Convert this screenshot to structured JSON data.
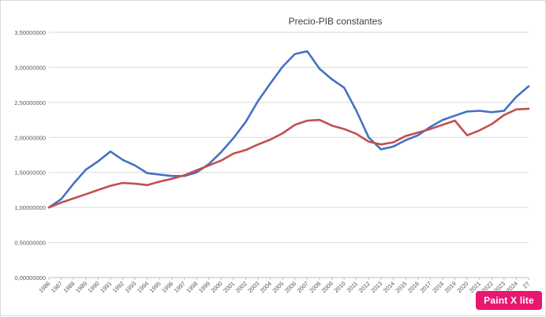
{
  "chart_data": {
    "type": "line",
    "title": "Precio-PIB constantes",
    "xlabel": "",
    "ylabel": "",
    "ylim": [
      0,
      3.5
    ],
    "y_ticks": [
      "0,00000000",
      "0,50000000",
      "1,00000000",
      "1,50000000",
      "2,00000000",
      "2,50000000",
      "3,00000000",
      "3,50000000"
    ],
    "categories": [
      "1986",
      "1987",
      "1988",
      "1989",
      "1990",
      "1991",
      "1992",
      "1993",
      "1994",
      "1995",
      "1996",
      "1997",
      "1998",
      "1999",
      "2000",
      "2001",
      "2002",
      "2003",
      "2004",
      "2005",
      "2006",
      "2007",
      "2008",
      "2009",
      "2010",
      "2011",
      "2012",
      "2013",
      "2014",
      "2015",
      "2016",
      "2017",
      "2018",
      "2019",
      "2020",
      "2021",
      "2022",
      "2023",
      "2024",
      "2T"
    ],
    "grid": true,
    "series": [
      {
        "color": "#4472c4",
        "values": [
          1.0,
          1.12,
          1.34,
          1.54,
          1.66,
          1.8,
          1.68,
          1.6,
          1.49,
          1.47,
          1.45,
          1.45,
          1.5,
          1.62,
          1.79,
          1.99,
          2.22,
          2.52,
          2.77,
          3.01,
          3.19,
          3.23,
          2.98,
          2.83,
          2.71,
          2.38,
          2.0,
          1.83,
          1.87,
          1.96,
          2.03,
          2.15,
          2.25,
          2.31,
          2.37,
          2.38,
          2.36,
          2.38,
          2.58,
          2.73
        ]
      },
      {
        "color": "#c0504d",
        "values": [
          1.0,
          1.07,
          1.13,
          1.19,
          1.25,
          1.31,
          1.35,
          1.34,
          1.32,
          1.37,
          1.41,
          1.46,
          1.53,
          1.6,
          1.67,
          1.77,
          1.82,
          1.9,
          1.97,
          2.06,
          2.18,
          2.24,
          2.25,
          2.17,
          2.12,
          2.05,
          1.94,
          1.9,
          1.93,
          2.02,
          2.07,
          2.12,
          2.18,
          2.24,
          2.03,
          2.1,
          2.19,
          2.32,
          2.4,
          2.41
        ]
      }
    ]
  },
  "watermark": {
    "text": "Paint X lite",
    "color": "#e8176f"
  }
}
